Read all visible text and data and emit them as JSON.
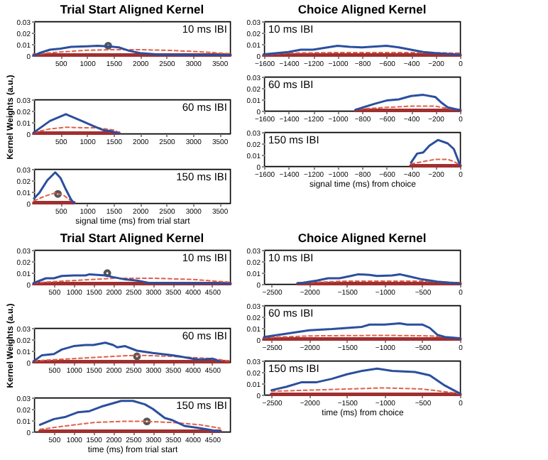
{
  "chart_data": [
    {
      "type": "line",
      "title": "Trial Start Aligned Kernel",
      "annotations": [
        "10 ms IBI"
      ],
      "xlim": [
        0,
        3700
      ],
      "xticks": [
        500,
        1000,
        1500,
        2000,
        2500,
        3000,
        3500
      ],
      "ylim": [
        0,
        0.03
      ],
      "yticks": [
        0,
        0.01,
        0.02,
        0.03
      ],
      "series": [
        {
          "color": "#2b4f9e",
          "x": [
            0,
            100,
            300,
            500,
            700,
            1000,
            1200,
            1400,
            1600,
            1800,
            2000,
            2300,
            2700,
            3000,
            3500,
            3700
          ],
          "values": [
            0,
            0.002,
            0.005,
            0.006,
            0.0075,
            0.008,
            0.0085,
            0.008,
            0.007,
            0.004,
            0.002,
            0.001,
            0.0005,
            0.0005,
            0.0003,
            0.0003
          ]
        },
        {
          "color": "#e0604a",
          "line_style": "dashed",
          "x": [
            0,
            500,
            1000,
            1500,
            2000,
            2500,
            3000,
            3700
          ],
          "values": [
            0.001,
            0.003,
            0.0045,
            0.005,
            0.005,
            0.0045,
            0.0035,
            0.0015
          ]
        },
        {
          "color": "#a03030",
          "x": [
            0,
            3700
          ],
          "values": [
            0.0003,
            0.0003
          ]
        },
        {
          "type": "scatter",
          "marker": "circle",
          "color": "#555555",
          "x": [
            1400
          ],
          "values": [
            0.0085
          ]
        }
      ]
    },
    {
      "type": "line",
      "ylabel": "Kernel Weights (a.u.)",
      "annotations": [
        "60 ms IBI"
      ],
      "xlim": [
        0,
        3700
      ],
      "xticks": [
        500,
        1000,
        1500,
        2000,
        2500,
        3000,
        3500
      ],
      "ylim": [
        0,
        0.03
      ],
      "yticks": [
        0,
        0.01,
        0.02,
        0.03
      ],
      "series": [
        {
          "color": "#2b4f9e",
          "x": [
            0,
            150,
            300,
            450,
            600,
            750,
            900,
            1100,
            1300,
            1450,
            1600
          ],
          "values": [
            0.001,
            0.006,
            0.011,
            0.014,
            0.017,
            0.014,
            0.011,
            0.007,
            0.003,
            0.002,
            0
          ]
        },
        {
          "color": "#e0604a",
          "line_style": "dashed",
          "x": [
            0,
            300,
            600,
            900,
            1200,
            1500,
            1600
          ],
          "values": [
            0.001,
            0.004,
            0.0055,
            0.005,
            0.005,
            0.003,
            0.001
          ]
        },
        {
          "color": "#a03030",
          "x": [
            0,
            1600
          ],
          "values": [
            0.0003,
            0.0003
          ]
        }
      ]
    },
    {
      "type": "line",
      "xlabel": "signal time (ms) from trial start",
      "annotations": [
        "150 ms IBI"
      ],
      "xlim": [
        0,
        3700
      ],
      "xticks": [
        500,
        1000,
        1500,
        2000,
        2500,
        3000,
        3500
      ],
      "ylim": [
        0,
        0.03
      ],
      "yticks": [
        0,
        0.01,
        0.02,
        0.03
      ],
      "series": [
        {
          "color": "#2b4f9e",
          "x": [
            0,
            100,
            250,
            400,
            500,
            600,
            700,
            750
          ],
          "values": [
            0.004,
            0.009,
            0.02,
            0.027,
            0.022,
            0.012,
            0.003,
            0
          ]
        },
        {
          "color": "#e0604a",
          "line_style": "dashed",
          "x": [
            0,
            200,
            400,
            550,
            700
          ],
          "values": [
            0.002,
            0.006,
            0.009,
            0.007,
            0.002
          ]
        },
        {
          "color": "#a03030",
          "x": [
            0,
            750
          ],
          "values": [
            0.0003,
            0.0003
          ]
        },
        {
          "type": "scatter",
          "marker": "circle",
          "color": "#555555",
          "x": [
            450
          ],
          "values": [
            0.008
          ]
        }
      ]
    },
    {
      "type": "line",
      "title": "Choice Aligned Kernel",
      "annotations": [
        "10 ms IBI"
      ],
      "xlim": [
        -1600,
        0
      ],
      "xticks": [
        -1600,
        -1400,
        -1200,
        -1000,
        -800,
        -600,
        -400,
        -200,
        0
      ],
      "ylim": [
        0,
        0.03
      ],
      "yticks": [
        0,
        0.01,
        0.02,
        0.03
      ],
      "series": [
        {
          "color": "#2b4f9e",
          "x": [
            -1600,
            -1400,
            -1300,
            -1200,
            -1000,
            -900,
            -800,
            -600,
            -500,
            -400,
            -300,
            -200,
            0
          ],
          "values": [
            0.001,
            0.003,
            0.005,
            0.005,
            0.0085,
            0.0075,
            0.007,
            0.0085,
            0.007,
            0.005,
            0.003,
            0.002,
            0.0005
          ]
        },
        {
          "color": "#e0604a",
          "line_style": "dashed",
          "x": [
            -1600,
            -1400,
            -1000,
            -400,
            0
          ],
          "values": [
            0.0005,
            0.002,
            0.0025,
            0.0025,
            0.002
          ]
        },
        {
          "color": "#a03030",
          "x": [
            -1600,
            0
          ],
          "values": [
            0.0003,
            0.0003
          ]
        }
      ]
    },
    {
      "type": "line",
      "annotations": [
        "60 ms IBI"
      ],
      "xlim": [
        -1600,
        0
      ],
      "xticks": [
        -1600,
        -1400,
        -1200,
        -1000,
        -800,
        -600,
        -400,
        -200,
        0
      ],
      "ylim": [
        0,
        0.03
      ],
      "yticks": [
        0,
        0.01,
        0.02,
        0.03
      ],
      "series": [
        {
          "color": "#2b4f9e",
          "x": [
            -850,
            -700,
            -600,
            -500,
            -400,
            -300,
            -200,
            -150,
            -100,
            0
          ],
          "values": [
            0.001,
            0.006,
            0.009,
            0.01,
            0.013,
            0.014,
            0.012,
            0.007,
            0.003,
            0.0005
          ]
        },
        {
          "color": "#e0604a",
          "line_style": "dashed",
          "x": [
            -820,
            -600,
            -400,
            -200,
            -100,
            0
          ],
          "values": [
            0.0015,
            0.003,
            0.004,
            0.004,
            0.002,
            0.001
          ]
        },
        {
          "color": "#a03030",
          "x": [
            -850,
            0
          ],
          "values": [
            0.0003,
            0.0003
          ]
        }
      ]
    },
    {
      "type": "line",
      "xlabel": "signal time (ms) from choice",
      "annotations": [
        "150 ms IBI"
      ],
      "xlim": [
        -1600,
        0
      ],
      "xticks": [
        -1600,
        -1400,
        -1200,
        -1000,
        -800,
        -600,
        -400,
        -200,
        0
      ],
      "ylim": [
        0,
        0.03
      ],
      "yticks": [
        0,
        0.01,
        0.02,
        0.03
      ],
      "series": [
        {
          "color": "#2b4f9e",
          "x": [
            -400,
            -350,
            -300,
            -250,
            -180,
            -100,
            -50,
            0
          ],
          "values": [
            0.003,
            0.011,
            0.012,
            0.018,
            0.023,
            0.02,
            0.015,
            0.001
          ]
        },
        {
          "color": "#e0604a",
          "line_style": "dashed",
          "x": [
            -400,
            -300,
            -200,
            -100,
            -50,
            0
          ],
          "values": [
            0.002,
            0.004,
            0.006,
            0.006,
            0.004,
            0.001
          ]
        },
        {
          "color": "#a03030",
          "x": [
            -400,
            0
          ],
          "values": [
            0.0003,
            0.0003
          ]
        }
      ]
    },
    {
      "type": "line",
      "title": "Trial Start Aligned Kernel",
      "annotations": [
        "10 ms IBI"
      ],
      "xlim": [
        0,
        4950
      ],
      "xticks": [
        500,
        1000,
        1500,
        2000,
        2500,
        3000,
        3500,
        4000,
        4500
      ],
      "ylim": [
        0,
        0.03
      ],
      "yticks": [
        0,
        0.01,
        0.02,
        0.03
      ],
      "series": [
        {
          "color": "#2b4f9e",
          "x": [
            0,
            300,
            500,
            700,
            1000,
            1300,
            1400,
            1800,
            2000,
            2300,
            2600,
            2900,
            3500,
            4000,
            4500,
            4950
          ],
          "values": [
            0.001,
            0.005,
            0.005,
            0.007,
            0.0075,
            0.0075,
            0.0085,
            0.0075,
            0.006,
            0.004,
            0.003,
            0.001,
            0.0007,
            0.0007,
            0.0005,
            0.0003
          ]
        },
        {
          "color": "#e0604a",
          "line_style": "dashed",
          "x": [
            0,
            1000,
            2000,
            3000,
            4000,
            4950
          ],
          "values": [
            0.001,
            0.003,
            0.005,
            0.005,
            0.004,
            0.0015
          ]
        },
        {
          "color": "#a03030",
          "x": [
            0,
            4950
          ],
          "values": [
            0.0003,
            0.0003
          ]
        },
        {
          "type": "scatter",
          "marker": "circle",
          "color": "#555555",
          "x": [
            1850
          ],
          "values": [
            0.0095
          ]
        }
      ]
    },
    {
      "type": "line",
      "ylabel": "Kernel Weights (a.u.)",
      "annotations": [
        "60 ms IBI"
      ],
      "xlim": [
        0,
        4950
      ],
      "xticks": [
        500,
        1000,
        1500,
        2000,
        2500,
        3000,
        3500,
        4000,
        4500
      ],
      "ylim": [
        0,
        0.03
      ],
      "yticks": [
        0,
        0.01,
        0.02,
        0.03
      ],
      "series": [
        {
          "color": "#2b4f9e",
          "x": [
            0,
            200,
            500,
            700,
            1000,
            1300,
            1500,
            1800,
            2000,
            2100,
            2300,
            2600,
            3000,
            3500,
            4000,
            4200,
            4500,
            4700
          ],
          "values": [
            0.001,
            0.006,
            0.007,
            0.011,
            0.014,
            0.015,
            0.015,
            0.017,
            0.015,
            0.013,
            0.014,
            0.01,
            0.008,
            0.006,
            0.003,
            0.002,
            0.003,
            0.0005
          ]
        },
        {
          "color": "#e0604a",
          "line_style": "dashed",
          "x": [
            0,
            1000,
            2000,
            2600,
            3500,
            4500,
            4900
          ],
          "values": [
            0.001,
            0.003,
            0.005,
            0.006,
            0.005,
            0.003,
            0.001
          ]
        },
        {
          "color": "#a03030",
          "x": [
            0,
            4900
          ],
          "values": [
            0.0003,
            0.0003
          ]
        },
        {
          "type": "scatter",
          "marker": "circle",
          "color": "#555555",
          "x": [
            2600
          ],
          "values": [
            0.005
          ]
        }
      ]
    },
    {
      "type": "line",
      "xlabel": "time (ms) from trial start",
      "annotations": [
        "150 ms IBI"
      ],
      "xlim": [
        0,
        4950
      ],
      "xticks": [
        500,
        1000,
        1500,
        2000,
        2500,
        3000,
        3500,
        4000,
        4500
      ],
      "ylim": [
        0,
        0.03
      ],
      "yticks": [
        0,
        0.01,
        0.02,
        0.03
      ],
      "series": [
        {
          "color": "#2b4f9e",
          "x": [
            150,
            500,
            800,
            1100,
            1400,
            1700,
            2000,
            2200,
            2500,
            2800,
            3000,
            3300,
            3500,
            3800,
            4200,
            4700
          ],
          "values": [
            0.006,
            0.011,
            0.013,
            0.017,
            0.018,
            0.022,
            0.025,
            0.027,
            0.027,
            0.024,
            0.02,
            0.012,
            0.01,
            0.005,
            0.003,
            0
          ]
        },
        {
          "color": "#e0604a",
          "line_style": "dashed",
          "x": [
            150,
            800,
            1500,
            2200,
            2800,
            3500,
            4200,
            4700
          ],
          "values": [
            0.002,
            0.005,
            0.008,
            0.009,
            0.009,
            0.008,
            0.006,
            0.003
          ]
        },
        {
          "color": "#a03030",
          "x": [
            150,
            4700
          ],
          "values": [
            0.0003,
            0.0003
          ]
        },
        {
          "type": "scatter",
          "marker": "circle",
          "color": "#555555",
          "x": [
            2850
          ],
          "values": [
            0.009
          ]
        }
      ]
    },
    {
      "type": "line",
      "title": "Choice Aligned Kernel",
      "annotations": [
        "10 ms IBI"
      ],
      "xlim": [
        -2600,
        0
      ],
      "xticks": [
        -2500,
        -2000,
        -1500,
        -1000,
        -500,
        0
      ],
      "ylim": [
        0,
        0.03
      ],
      "yticks": [
        0,
        0.01,
        0.02,
        0.03
      ],
      "series": [
        {
          "color": "#2b4f9e",
          "x": [
            -2150,
            -1900,
            -1750,
            -1600,
            -1450,
            -1350,
            -1200,
            -1100,
            -900,
            -800,
            -700,
            -500,
            -300,
            0
          ],
          "values": [
            0.0003,
            0.003,
            0.005,
            0.005,
            0.007,
            0.0085,
            0.008,
            0.007,
            0.0075,
            0.0085,
            0.007,
            0.004,
            0.002,
            0.0003
          ]
        },
        {
          "color": "#e0604a",
          "line_style": "dashed",
          "x": [
            -2150,
            -1500,
            -1000,
            -500,
            0
          ],
          "values": [
            0.001,
            0.0025,
            0.0025,
            0.0025,
            0.001
          ]
        },
        {
          "color": "#a03030",
          "x": [
            -2150,
            0
          ],
          "values": [
            0.0003,
            0.0003
          ]
        }
      ]
    },
    {
      "type": "line",
      "annotations": [
        "60 ms IBI"
      ],
      "xlim": [
        -2600,
        0
      ],
      "xticks": [
        -2500,
        -2000,
        -1500,
        -1000,
        -500,
        0
      ],
      "ylim": [
        0,
        0.03
      ],
      "yticks": [
        0,
        0.01,
        0.02,
        0.03
      ],
      "series": [
        {
          "color": "#2b4f9e",
          "x": [
            -2600,
            -2300,
            -2000,
            -1700,
            -1500,
            -1300,
            -1200,
            -1000,
            -800,
            -700,
            -500,
            -400,
            -300,
            -200,
            0
          ],
          "values": [
            0.002,
            0.005,
            0.008,
            0.009,
            0.01,
            0.011,
            0.013,
            0.013,
            0.014,
            0.013,
            0.013,
            0.01,
            0.004,
            0.002,
            0.001
          ]
        },
        {
          "color": "#e0604a",
          "line_style": "dashed",
          "x": [
            -2600,
            -2000,
            -1000,
            -400,
            0
          ],
          "values": [
            0.0015,
            0.003,
            0.0035,
            0.003,
            0.001
          ]
        },
        {
          "color": "#a03030",
          "x": [
            -2600,
            0
          ],
          "values": [
            0.0003,
            0.0003
          ]
        }
      ]
    },
    {
      "type": "line",
      "xlabel": "time (ms) from choice",
      "annotations": [
        "150 ms IBI"
      ],
      "xlim": [
        -2600,
        0
      ],
      "xticks": [
        -2500,
        -2000,
        -1500,
        -1000,
        -500,
        0
      ],
      "ylim": [
        0,
        0.03
      ],
      "yticks": [
        0,
        0.01,
        0.02,
        0.03
      ],
      "series": [
        {
          "color": "#2b4f9e",
          "x": [
            -2500,
            -2300,
            -2100,
            -1900,
            -1700,
            -1500,
            -1300,
            -1100,
            -900,
            -600,
            -400,
            -200,
            0
          ],
          "values": [
            0.004,
            0.007,
            0.011,
            0.011,
            0.014,
            0.018,
            0.021,
            0.023,
            0.021,
            0.02,
            0.017,
            0.008,
            0.001
          ]
        },
        {
          "color": "#e0604a",
          "line_style": "dashed",
          "x": [
            -2500,
            -2000,
            -1500,
            -1000,
            -500,
            0
          ],
          "values": [
            0.003,
            0.004,
            0.005,
            0.006,
            0.005,
            0.001
          ]
        },
        {
          "color": "#a03030",
          "x": [
            -2500,
            0
          ],
          "values": [
            0.0003,
            0.0003
          ]
        }
      ]
    }
  ]
}
